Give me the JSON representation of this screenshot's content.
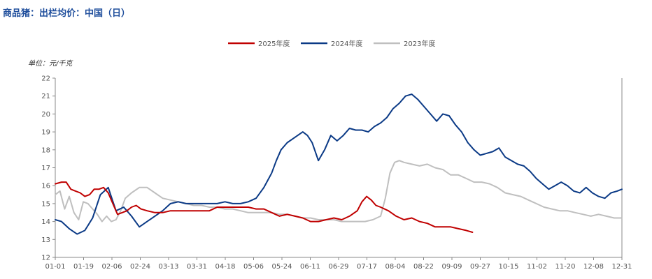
{
  "title": "商品猪：出栏均价：中国（日）",
  "unit_label": "单位：元/千克",
  "chart_data": {
    "type": "line",
    "title": "商品猪：出栏均价：中国（日）",
    "ylabel": "单位：元/千克",
    "ylim": [
      12,
      22
    ],
    "y_ticks": [
      12,
      13,
      14,
      15,
      16,
      17,
      18,
      19,
      20,
      21,
      22
    ],
    "x_ticks": [
      "01-01",
      "01-19",
      "02-06",
      "02-24",
      "03-13",
      "03-31",
      "04-18",
      "05-06",
      "05-24",
      "06-11",
      "06-29",
      "07-17",
      "08-04",
      "08-22",
      "09-09",
      "09-27",
      "10-15",
      "11-02",
      "11-20",
      "12-08",
      "12-31"
    ],
    "x_unit": "day of year (1 = 01-01, 365 = 12-31)",
    "xlim": [
      1,
      365
    ],
    "legend_position": "top",
    "grid": false,
    "series": [
      {
        "name": "2025年度",
        "color": "#c00000",
        "x": [
          1,
          5,
          8,
          11,
          14,
          17,
          20,
          23,
          26,
          29,
          32,
          35,
          38,
          41,
          44,
          47,
          50,
          53,
          56,
          60,
          65,
          70,
          75,
          80,
          85,
          90,
          95,
          100,
          105,
          110,
          115,
          120,
          125,
          130,
          135,
          140,
          145,
          150,
          155,
          160,
          165,
          170,
          175,
          180,
          185,
          190,
          195,
          198,
          201,
          204,
          207,
          210,
          215,
          220,
          225,
          230,
          235,
          240,
          245,
          250,
          255,
          260,
          265,
          269
        ],
        "values": [
          16.1,
          16.2,
          16.2,
          15.8,
          15.7,
          15.6,
          15.4,
          15.5,
          15.8,
          15.8,
          15.9,
          15.6,
          15.0,
          14.4,
          14.5,
          14.6,
          14.8,
          14.9,
          14.7,
          14.6,
          14.5,
          14.5,
          14.6,
          14.6,
          14.6,
          14.6,
          14.6,
          14.6,
          14.8,
          14.8,
          14.8,
          14.8,
          14.8,
          14.7,
          14.7,
          14.5,
          14.3,
          14.4,
          14.3,
          14.2,
          14.0,
          14.0,
          14.1,
          14.2,
          14.1,
          14.3,
          14.6,
          15.1,
          15.4,
          15.2,
          14.9,
          14.8,
          14.6,
          14.3,
          14.1,
          14.2,
          14.0,
          13.9,
          13.7,
          13.7,
          13.7,
          13.6,
          13.5,
          13.4
        ]
      },
      {
        "name": "2024年度",
        "color": "#0b3a86",
        "x": [
          1,
          5,
          10,
          15,
          20,
          25,
          30,
          35,
          40,
          45,
          50,
          55,
          60,
          65,
          70,
          75,
          80,
          85,
          90,
          95,
          100,
          105,
          110,
          115,
          120,
          125,
          130,
          135,
          140,
          143,
          146,
          150,
          155,
          160,
          163,
          166,
          170,
          174,
          178,
          182,
          186,
          190,
          194,
          198,
          202,
          206,
          210,
          214,
          218,
          222,
          226,
          230,
          234,
          238,
          242,
          246,
          250,
          254,
          258,
          262,
          266,
          270,
          274,
          278,
          282,
          286,
          290,
          294,
          298,
          302,
          306,
          310,
          314,
          318,
          322,
          326,
          330,
          334,
          338,
          342,
          346,
          350,
          354,
          358,
          362,
          365
        ],
        "values": [
          14.1,
          14.0,
          13.6,
          13.3,
          13.5,
          14.2,
          15.5,
          15.9,
          14.6,
          14.8,
          14.3,
          13.7,
          14.0,
          14.3,
          14.6,
          15.0,
          15.1,
          15.0,
          15.0,
          15.0,
          15.0,
          15.0,
          15.1,
          15.0,
          15.0,
          15.1,
          15.3,
          15.9,
          16.7,
          17.4,
          18.0,
          18.4,
          18.7,
          19.0,
          18.8,
          18.4,
          17.4,
          18.0,
          18.8,
          18.5,
          18.8,
          19.2,
          19.1,
          19.1,
          19.0,
          19.3,
          19.5,
          19.8,
          20.3,
          20.6,
          21.0,
          21.1,
          20.8,
          20.4,
          20.0,
          19.6,
          20.0,
          19.9,
          19.4,
          19.0,
          18.4,
          18.0,
          17.7,
          17.8,
          17.9,
          18.1,
          17.6,
          17.4,
          17.2,
          17.1,
          16.8,
          16.4,
          16.1,
          15.8,
          16.0,
          16.2,
          16.0,
          15.7,
          15.6,
          15.9,
          15.6,
          15.4,
          15.3,
          15.6,
          15.7,
          15.8
        ]
      },
      {
        "name": "2023年度",
        "color": "#bfbfbf",
        "x": [
          1,
          4,
          7,
          10,
          13,
          16,
          19,
          22,
          25,
          28,
          31,
          34,
          37,
          40,
          43,
          46,
          50,
          55,
          60,
          65,
          70,
          75,
          80,
          85,
          90,
          95,
          100,
          105,
          110,
          115,
          120,
          125,
          130,
          135,
          140,
          145,
          150,
          155,
          160,
          165,
          170,
          175,
          180,
          185,
          190,
          195,
          200,
          205,
          210,
          213,
          216,
          219,
          222,
          225,
          230,
          235,
          240,
          245,
          250,
          255,
          260,
          265,
          270,
          275,
          280,
          285,
          290,
          295,
          300,
          305,
          310,
          315,
          320,
          325,
          330,
          335,
          340,
          345,
          350,
          355,
          360,
          365
        ],
        "values": [
          15.5,
          15.7,
          14.7,
          15.4,
          14.5,
          14.1,
          15.1,
          15.0,
          14.7,
          14.4,
          14.0,
          14.3,
          14.0,
          14.1,
          14.6,
          15.3,
          15.6,
          15.9,
          15.9,
          15.6,
          15.3,
          15.2,
          15.1,
          15.0,
          14.9,
          14.9,
          14.8,
          14.8,
          14.7,
          14.7,
          14.6,
          14.5,
          14.5,
          14.5,
          14.5,
          14.4,
          14.4,
          14.3,
          14.2,
          14.2,
          14.1,
          14.1,
          14.1,
          14.0,
          14.0,
          14.0,
          14.0,
          14.1,
          14.3,
          15.3,
          16.7,
          17.3,
          17.4,
          17.3,
          17.2,
          17.1,
          17.2,
          17.0,
          16.9,
          16.6,
          16.6,
          16.4,
          16.2,
          16.2,
          16.1,
          15.9,
          15.6,
          15.5,
          15.4,
          15.2,
          15.0,
          14.8,
          14.7,
          14.6,
          14.6,
          14.5,
          14.4,
          14.3,
          14.4,
          14.3,
          14.2,
          14.2
        ]
      }
    ]
  }
}
